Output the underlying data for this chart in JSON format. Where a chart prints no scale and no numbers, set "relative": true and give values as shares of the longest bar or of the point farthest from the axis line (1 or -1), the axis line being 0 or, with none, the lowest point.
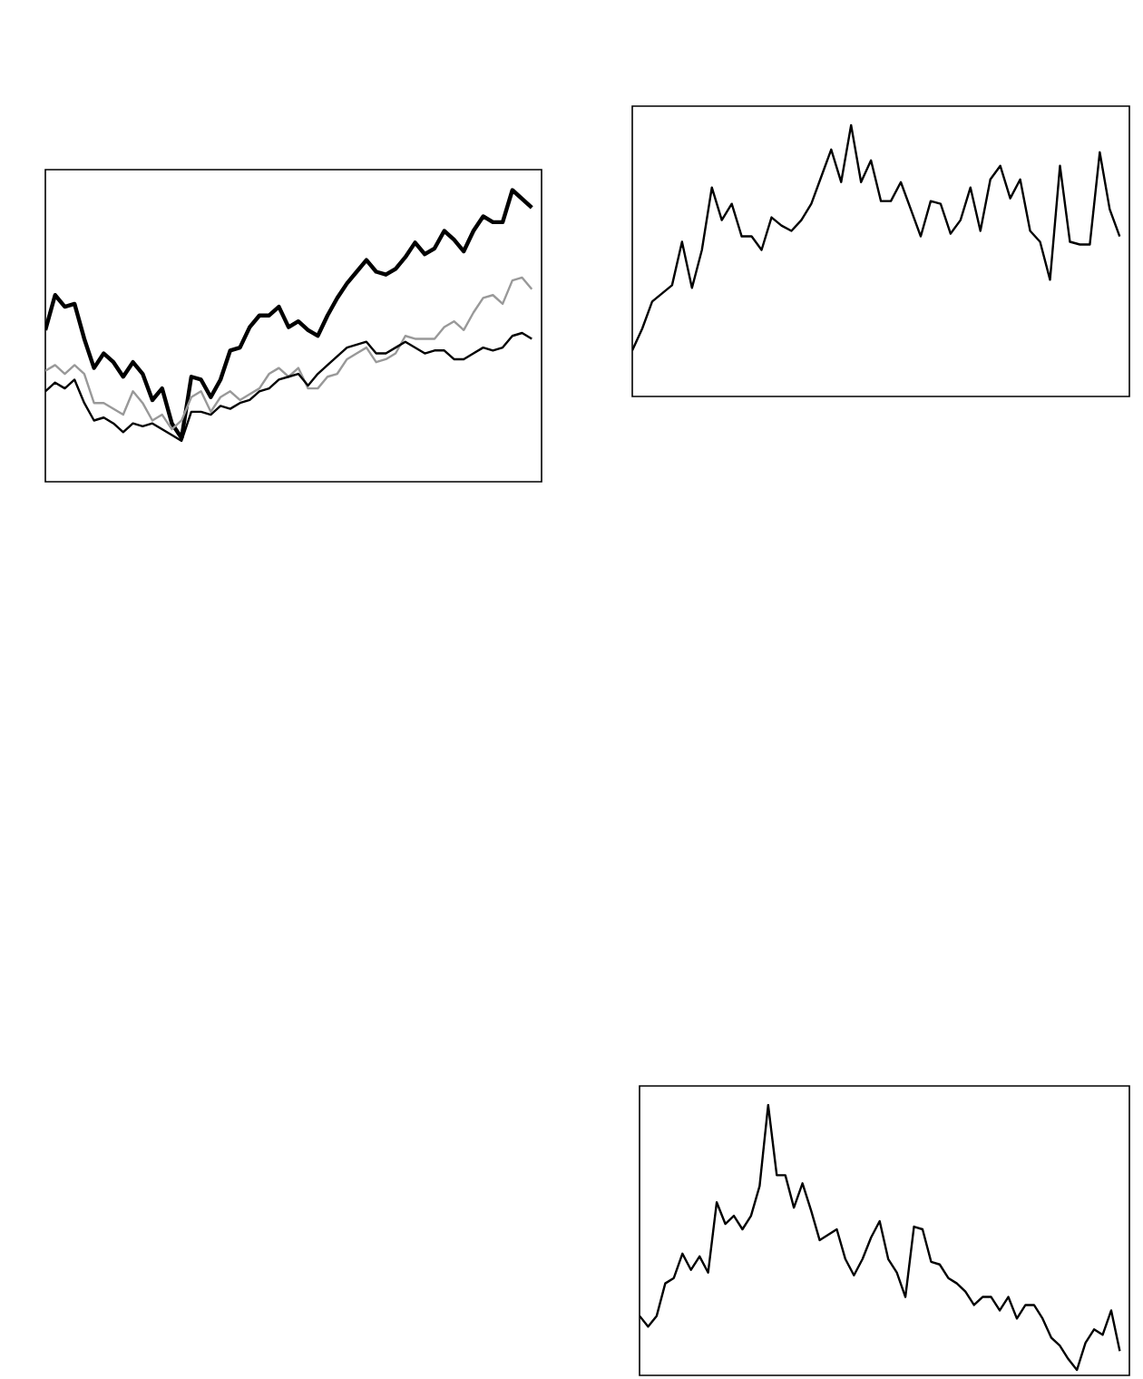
{
  "chart_data": [
    {
      "type": "line",
      "relative": true,
      "categories": [
        null,
        null,
        null,
        null,
        null,
        null,
        null,
        null,
        null,
        null,
        null,
        null,
        null,
        null,
        null,
        null,
        null,
        null,
        null,
        null,
        null,
        null,
        null,
        null,
        null,
        null,
        null,
        null,
        null,
        null,
        null,
        null,
        null,
        null,
        null,
        null,
        null,
        null,
        null,
        null,
        null,
        null,
        null,
        null,
        null,
        null,
        null,
        null,
        null,
        null,
        null
      ],
      "series": [
        {
          "color": "#000000",
          "values": [
            0.52,
            0.64,
            0.6,
            0.61,
            0.49,
            0.39,
            0.44,
            0.41,
            0.36,
            0.41,
            0.37,
            0.28,
            0.32,
            0.2,
            0.15,
            0.36,
            0.35,
            0.29,
            0.35,
            0.45,
            0.46,
            0.53,
            0.57,
            0.57,
            0.6,
            0.53,
            0.55,
            0.52,
            0.5,
            0.57,
            0.63,
            0.68,
            0.72,
            0.76,
            0.72,
            0.71,
            0.73,
            0.77,
            0.82,
            0.78,
            0.8,
            0.86,
            0.83,
            0.79,
            0.86,
            0.91,
            0.89,
            0.89,
            1.0,
            0.97,
            0.94
          ]
        },
        {
          "color": "#999999",
          "values": [
            0.38,
            0.4,
            0.37,
            0.4,
            0.37,
            0.27,
            0.27,
            0.25,
            0.23,
            0.31,
            0.27,
            0.21,
            0.23,
            0.18,
            0.21,
            0.29,
            0.31,
            0.24,
            0.29,
            0.31,
            0.28,
            0.3,
            0.32,
            0.37,
            0.39,
            0.36,
            0.39,
            0.32,
            0.32,
            0.36,
            0.37,
            0.42,
            0.44,
            0.46,
            0.41,
            0.42,
            0.44,
            0.5,
            0.49,
            0.49,
            0.49,
            0.53,
            0.55,
            0.52,
            0.58,
            0.63,
            0.64,
            0.61,
            0.69,
            0.7,
            0.66
          ]
        },
        {
          "color": "#000000",
          "values": [
            0.31,
            0.34,
            0.32,
            0.35,
            0.27,
            0.21,
            0.22,
            0.2,
            0.17,
            0.2,
            0.19,
            0.2,
            0.18,
            0.16,
            0.14,
            0.24,
            0.24,
            0.23,
            0.26,
            0.25,
            0.27,
            0.28,
            0.31,
            0.32,
            0.35,
            0.36,
            0.37,
            0.33,
            0.37,
            0.4,
            0.43,
            0.46,
            0.47,
            0.48,
            0.44,
            0.44,
            0.46,
            0.48,
            0.46,
            0.44,
            0.45,
            0.45,
            0.42,
            0.42,
            0.44,
            0.46,
            0.45,
            0.46,
            0.5,
            0.51,
            0.49
          ]
        }
      ]
    },
    {
      "type": "line",
      "relative": true,
      "categories": [
        null,
        null,
        null,
        null,
        null,
        null,
        null,
        null,
        null,
        null,
        null,
        null,
        null,
        null,
        null,
        null,
        null,
        null,
        null,
        null,
        null,
        null,
        null,
        null,
        null,
        null,
        null,
        null,
        null,
        null,
        null,
        null,
        null,
        null,
        null,
        null,
        null,
        null,
        null,
        null,
        null,
        null,
        null,
        null,
        null,
        null,
        null,
        null,
        null,
        null
      ],
      "series": [
        {
          "color": "#000000",
          "values": [
            0.17,
            0.25,
            0.35,
            0.38,
            0.41,
            0.57,
            0.4,
            0.54,
            0.77,
            0.65,
            0.71,
            0.59,
            0.59,
            0.54,
            0.66,
            0.63,
            0.61,
            0.65,
            0.71,
            0.81,
            0.91,
            0.79,
            1.0,
            0.79,
            0.87,
            0.72,
            0.72,
            0.79,
            0.69,
            0.59,
            0.72,
            0.71,
            0.6,
            0.65,
            0.77,
            0.61,
            0.8,
            0.85,
            0.73,
            0.8,
            0.61,
            0.57,
            0.43,
            0.85,
            0.57,
            0.56,
            0.56,
            0.9,
            0.69,
            0.59
          ]
        }
      ]
    },
    {
      "type": "line",
      "relative": true,
      "categories": [
        null,
        null,
        null,
        null,
        null,
        null,
        null,
        null,
        null,
        null,
        null,
        null,
        null,
        null,
        null,
        null,
        null,
        null,
        null,
        null,
        null,
        null,
        null,
        null,
        null,
        null,
        null,
        null,
        null,
        null,
        null,
        null,
        null,
        null,
        null,
        null,
        null,
        null,
        null,
        null,
        null,
        null,
        null,
        null,
        null,
        null,
        null,
        null,
        null,
        null,
        null,
        null,
        null,
        null,
        null,
        null,
        null
      ],
      "series": [
        {
          "color": "#000000",
          "values": [
            0.22,
            0.18,
            0.22,
            0.34,
            0.36,
            0.45,
            0.39,
            0.44,
            0.38,
            0.64,
            0.56,
            0.59,
            0.54,
            0.59,
            0.7,
            1.0,
            0.74,
            0.74,
            0.62,
            0.71,
            0.61,
            0.5,
            0.52,
            0.54,
            0.43,
            0.37,
            0.43,
            0.51,
            0.57,
            0.43,
            0.38,
            0.29,
            0.55,
            0.54,
            0.42,
            0.41,
            0.36,
            0.34,
            0.31,
            0.26,
            0.29,
            0.29,
            0.24,
            0.29,
            0.21,
            0.26,
            0.26,
            0.21,
            0.14,
            0.11,
            0.06,
            0.02,
            0.12,
            0.17,
            0.15,
            0.24,
            0.09
          ]
        }
      ]
    }
  ]
}
